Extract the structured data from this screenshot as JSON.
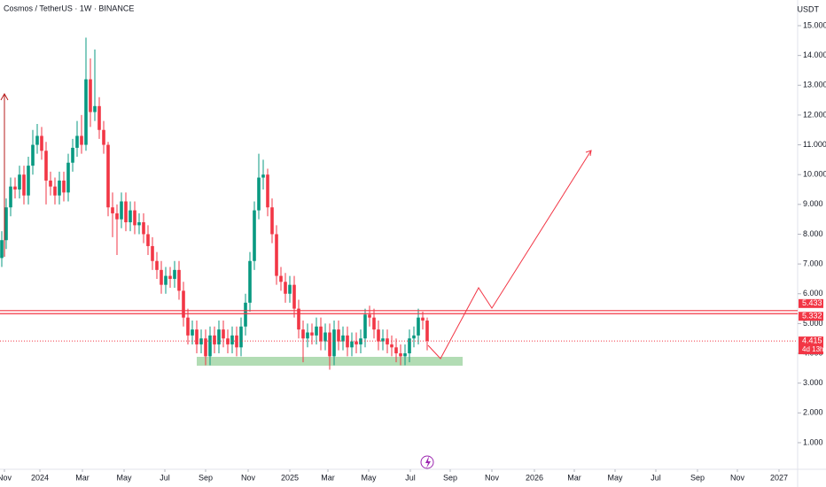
{
  "chart_data": {
    "type": "candlestick",
    "title": "Cosmos / TetherUS · 1W · BINANCE",
    "currency": "USDT",
    "open": [
      7.2,
      7.8,
      8.9,
      9.6,
      9.5,
      10.0,
      9.3,
      10.3,
      11.0,
      11.3,
      10.8,
      9.8,
      9.6,
      9.3,
      9.8,
      9.4,
      10.4,
      10.9,
      11.3,
      11.0,
      13.2,
      12.1,
      12.3,
      11.5,
      11.0,
      8.9,
      8.7,
      8.5,
      9.1,
      8.4,
      8.8,
      8.3,
      8.4,
      8.0,
      7.6,
      7.1,
      6.8,
      6.3,
      6.6,
      6.5,
      6.8,
      6.1,
      5.2,
      4.6,
      4.8,
      4.3,
      4.5,
      3.9,
      4.6,
      4.3,
      4.8,
      4.5,
      4.3,
      4.6,
      4.2,
      4.9,
      5.7,
      7.1,
      8.8,
      9.9,
      10.0,
      8.9,
      8.0,
      6.6,
      6.4,
      6.0,
      6.3,
      5.5,
      4.8,
      4.5,
      4.7,
      4.6,
      4.9,
      4.4,
      4.7,
      3.9,
      4.8,
      4.4,
      4.6,
      4.2,
      4.4,
      4.3,
      4.5,
      5.3,
      5.2,
      4.8,
      4.4,
      4.5,
      4.3,
      4.2,
      4.0,
      3.9,
      4.0,
      4.5,
      4.6,
      5.2,
      5.1
    ],
    "high": [
      8.1,
      9.2,
      9.9,
      9.9,
      10.3,
      10.3,
      10.6,
      11.5,
      11.7,
      11.6,
      11.1,
      10.1,
      9.9,
      10.1,
      10.1,
      10.7,
      11.2,
      11.8,
      12.0,
      14.6,
      13.9,
      14.2,
      12.6,
      11.8,
      11.1,
      9.4,
      9.0,
      9.4,
      9.4,
      9.1,
      9.1,
      8.7,
      8.7,
      8.3,
      7.9,
      7.4,
      7.1,
      6.9,
      6.9,
      7.1,
      7.1,
      6.4,
      5.5,
      5.1,
      5.1,
      4.8,
      4.8,
      4.9,
      4.9,
      5.1,
      5.1,
      4.8,
      4.9,
      4.9,
      5.2,
      6.0,
      7.4,
      9.1,
      10.7,
      10.5,
      10.2,
      9.2,
      8.3,
      6.9,
      6.7,
      6.6,
      6.6,
      5.8,
      5.1,
      5.0,
      5.0,
      5.2,
      5.2,
      5.0,
      5.0,
      5.1,
      5.1,
      4.9,
      4.9,
      4.7,
      4.7,
      4.8,
      5.5,
      5.6,
      5.5,
      5.1,
      4.8,
      4.8,
      4.6,
      4.5,
      4.3,
      4.3,
      4.8,
      4.9,
      5.5,
      5.4,
      5.2
    ],
    "low": [
      6.9,
      7.5,
      8.6,
      9.2,
      9.2,
      9.0,
      9.0,
      10.0,
      10.7,
      10.5,
      9.0,
      9.3,
      9.0,
      9.0,
      9.1,
      9.1,
      10.1,
      10.6,
      10.7,
      10.8,
      11.6,
      11.8,
      11.2,
      10.7,
      8.6,
      7.9,
      7.3,
      8.2,
      8.1,
      8.1,
      8.0,
      8.0,
      7.7,
      7.3,
      6.8,
      6.5,
      6.0,
      6.0,
      6.2,
      6.2,
      5.8,
      4.9,
      4.3,
      4.3,
      4.0,
      4.0,
      3.6,
      3.6,
      4.0,
      4.0,
      4.2,
      4.0,
      4.0,
      3.9,
      3.9,
      4.6,
      5.4,
      6.8,
      8.5,
      9.5,
      8.6,
      7.7,
      6.3,
      6.1,
      5.7,
      5.7,
      5.2,
      4.5,
      3.7,
      4.2,
      4.3,
      4.3,
      4.1,
      4.1,
      3.45,
      3.6,
      4.1,
      4.1,
      3.9,
      3.9,
      4.0,
      4.0,
      4.2,
      4.9,
      4.5,
      4.1,
      4.1,
      4.0,
      3.9,
      3.7,
      3.6,
      3.6,
      3.7,
      4.2,
      4.3,
      4.8,
      4.1
    ],
    "close": [
      7.8,
      8.9,
      9.6,
      9.5,
      10.0,
      9.3,
      10.3,
      11.0,
      11.3,
      10.8,
      9.8,
      9.6,
      9.3,
      9.8,
      9.4,
      10.4,
      10.9,
      11.3,
      11.0,
      13.2,
      12.1,
      12.3,
      11.5,
      11.0,
      8.9,
      8.7,
      8.5,
      9.1,
      8.4,
      8.8,
      8.3,
      8.4,
      8.0,
      7.6,
      7.1,
      6.8,
      6.3,
      6.6,
      6.5,
      6.8,
      6.1,
      5.2,
      4.6,
      4.8,
      4.3,
      4.5,
      3.9,
      4.6,
      4.3,
      4.8,
      4.5,
      4.3,
      4.6,
      4.2,
      4.9,
      5.7,
      7.1,
      8.8,
      9.9,
      10.0,
      8.9,
      8.0,
      6.6,
      6.4,
      6.0,
      6.3,
      5.5,
      4.8,
      4.5,
      4.7,
      4.6,
      4.9,
      4.4,
      4.7,
      3.9,
      4.8,
      4.4,
      4.6,
      4.2,
      4.4,
      4.3,
      4.5,
      5.3,
      5.2,
      4.8,
      4.4,
      4.5,
      4.3,
      4.2,
      4.0,
      3.9,
      4.0,
      4.5,
      4.6,
      5.2,
      5.1,
      4.415
    ],
    "up_color": "#089981",
    "down_color": "#f23645",
    "ylim": [
      0.107,
      15.862
    ],
    "yticks": [
      {
        "value": 1,
        "label": "1.000"
      },
      {
        "value": 2,
        "label": "2.000"
      },
      {
        "value": 3,
        "label": "3.000"
      },
      {
        "value": 4,
        "label": "4.000"
      },
      {
        "value": 5,
        "label": "5.000"
      },
      {
        "value": 6,
        "label": "6.000"
      },
      {
        "value": 7,
        "label": "7.000"
      },
      {
        "value": 8,
        "label": "8.000"
      },
      {
        "value": 9,
        "label": "9.000"
      },
      {
        "value": 10,
        "label": "10.000"
      },
      {
        "value": 11,
        "label": "11.000"
      },
      {
        "value": 12,
        "label": "12.000"
      },
      {
        "value": 13,
        "label": "13.000"
      },
      {
        "value": 14,
        "label": "14.000"
      },
      {
        "value": 15,
        "label": "15.000"
      }
    ],
    "xlim": [
      -0.4,
      179.6
    ],
    "xticks": [
      {
        "value": 0.6,
        "label": "Nov"
      },
      {
        "value": 8.6,
        "label": "2024"
      },
      {
        "value": 18.2,
        "label": "Mar"
      },
      {
        "value": 27.6,
        "label": "May"
      },
      {
        "value": 36.8,
        "label": "Jul"
      },
      {
        "value": 46,
        "label": "Sep"
      },
      {
        "value": 55.6,
        "label": "Nov"
      },
      {
        "value": 65,
        "label": "2025"
      },
      {
        "value": 73.6,
        "label": "Mar"
      },
      {
        "value": 82.8,
        "label": "May"
      },
      {
        "value": 92.2,
        "label": "Jul"
      },
      {
        "value": 101.2,
        "label": "Sep"
      },
      {
        "value": 110.6,
        "label": "Nov"
      },
      {
        "value": 120.2,
        "label": "2026"
      },
      {
        "value": 129.2,
        "label": "Mar"
      },
      {
        "value": 138.4,
        "label": "May"
      },
      {
        "value": 147.6,
        "label": "Jul"
      },
      {
        "value": 157,
        "label": "Sep"
      },
      {
        "value": 166,
        "label": "Nov"
      },
      {
        "value": 175.4,
        "label": "2027"
      }
    ],
    "horizontal_lines": [
      5.433,
      5.332
    ],
    "last_price": 4.415,
    "countdown": "4d 13h"
  }
}
